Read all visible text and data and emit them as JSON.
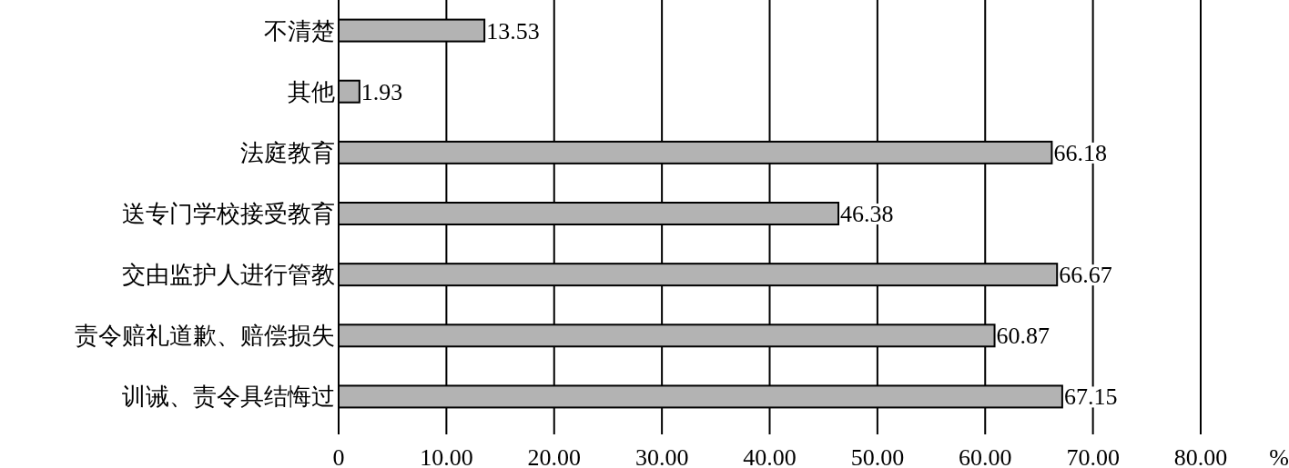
{
  "chart_data": {
    "type": "bar",
    "orientation": "horizontal",
    "categories": [
      "不清楚",
      "其他",
      "法庭教育",
      "送专门学校接受教育",
      "交由监护人进行管教",
      "责令赔礼道歉、赔偿损失",
      "训诫、责令具结悔过"
    ],
    "values": [
      13.53,
      1.93,
      66.18,
      46.38,
      66.67,
      60.87,
      67.15
    ],
    "color": "#b3b3b3",
    "xlabel": "%",
    "xlim": [
      0,
      80
    ],
    "xticks": [
      0,
      {
        "value": 10,
        "label": "10.00"
      },
      {
        "value": 20,
        "label": "20.00"
      },
      {
        "value": 30,
        "label": "30.00"
      },
      {
        "value": 40,
        "label": "40.00"
      },
      {
        "value": 50,
        "label": "50.00"
      },
      {
        "value": 60,
        "label": "60.00"
      },
      {
        "value": 70,
        "label": "70.00"
      },
      {
        "value": 80,
        "label": "80.00"
      }
    ],
    "grid": "x",
    "data_labels": true
  }
}
